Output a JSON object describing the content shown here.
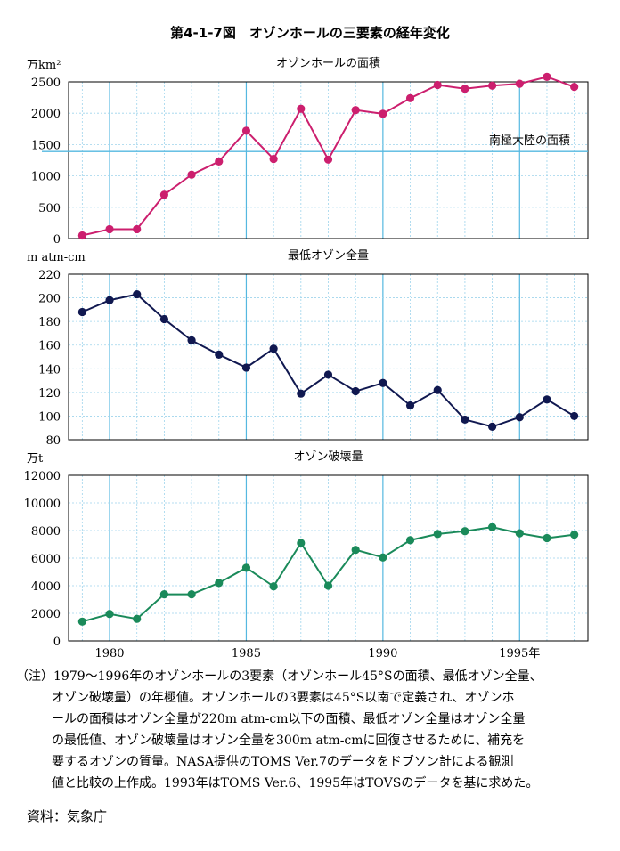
{
  "figure_title": "第4-1-7図　オゾンホールの三要素の経年変化",
  "note_lines": [
    "（注）1979～1996年のオゾンホールの3要素（オゾンホール45°Sの面積、最低オゾン全量、",
    "オゾン破壊量）の年極値。オゾンホールの3要素は45°S以南で定義され、オゾンホ",
    "ールの面積はオゾン全量が220m atm-cm以下の面積、最低オゾン全量はオゾン全量",
    "の最低値、オゾン破壊量はオゾン全量を300m atm-cmに回復させるために、補充を",
    "要するオゾンの質量。NASA提供のTOMS Ver.7のデータをドブソン計による観測",
    "値と比較の上作成。1993年はTOMS Ver.6、1995年はTOVSのデータを基に求めた。"
  ],
  "source": "資料：気象庁",
  "chart_data": [
    {
      "type": "line",
      "title": "オゾンホールの面積",
      "unit_label": "万km²",
      "color": "#cc1f6e",
      "x": [
        1979,
        1980,
        1981,
        1982,
        1983,
        1984,
        1985,
        1986,
        1987,
        1988,
        1989,
        1990,
        1991,
        1992,
        1993,
        1994,
        1995,
        1996,
        1997
      ],
      "values": [
        50,
        150,
        150,
        700,
        1020,
        1230,
        1720,
        1270,
        2070,
        1260,
        2050,
        1990,
        2240,
        2450,
        2390,
        2440,
        2470,
        2580,
        2420
      ],
      "ylim": [
        0,
        2500
      ],
      "yticks": [
        0,
        500,
        1000,
        1500,
        2000,
        2500
      ],
      "reference_line": {
        "value": 1390,
        "label": "南極大陸の面積"
      }
    },
    {
      "type": "line",
      "title": "最低オゾン全量",
      "unit_label": "m  atm-cm",
      "color": "#101850",
      "x": [
        1979,
        1980,
        1981,
        1982,
        1983,
        1984,
        1985,
        1986,
        1987,
        1988,
        1989,
        1990,
        1991,
        1992,
        1993,
        1994,
        1995,
        1996,
        1997
      ],
      "values": [
        188,
        198,
        203,
        182,
        164,
        152,
        141,
        157,
        119,
        135,
        121,
        128,
        109,
        122,
        97,
        91,
        99,
        114,
        100
      ],
      "ylim": [
        80,
        220
      ],
      "yticks": [
        80,
        100,
        120,
        140,
        160,
        180,
        200,
        220
      ]
    },
    {
      "type": "line",
      "title": "オゾン破壊量",
      "unit_label": "万t",
      "color": "#1a8a5a",
      "x": [
        1979,
        1980,
        1981,
        1982,
        1983,
        1984,
        1985,
        1986,
        1987,
        1988,
        1989,
        1990,
        1991,
        1992,
        1993,
        1994,
        1995,
        1996,
        1997
      ],
      "values": [
        1400,
        1950,
        1600,
        3380,
        3380,
        4200,
        5300,
        3950,
        7100,
        4000,
        6600,
        6050,
        7300,
        7750,
        7950,
        8250,
        7800,
        7450,
        7700
      ],
      "ylim": [
        0,
        12000
      ],
      "yticks": [
        0,
        2000,
        4000,
        6000,
        8000,
        10000,
        12000
      ]
    }
  ],
  "x_axis": {
    "ticks": [
      1980,
      1985,
      1990,
      1995
    ],
    "tick_labels": [
      "1980",
      "1985",
      "1990",
      "1995年"
    ]
  }
}
